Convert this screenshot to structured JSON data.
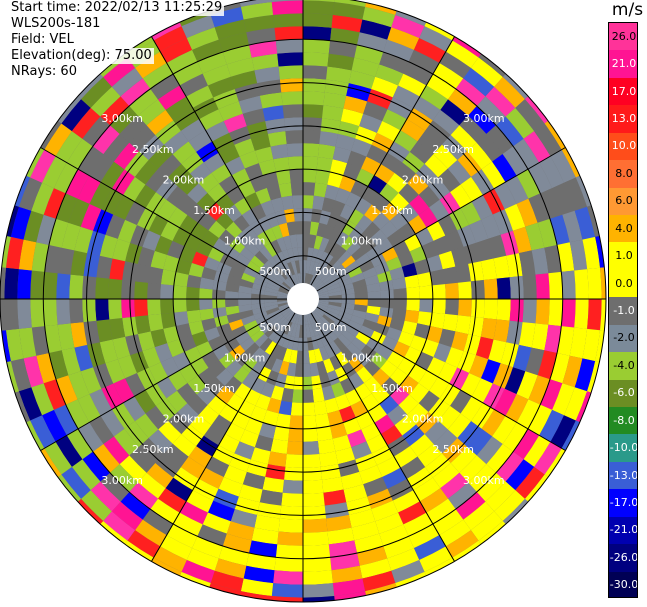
{
  "header": {
    "start_time": "Start time: 2022/02/13 11:25:29",
    "site": "WLS200s-181",
    "field": "Field: VEL",
    "elevation": "Elevation(deg): 75.00",
    "nrays": "NRays: 60"
  },
  "chart_data": {
    "type": "polar-ppi",
    "field": "VEL",
    "unit": "m/s",
    "n_rays": 60,
    "elevation_deg": 75.0,
    "max_range_km": 3.5,
    "range_rings_km": [
      0.5,
      1.0,
      1.5,
      2.0,
      2.5,
      3.0,
      3.5
    ],
    "ring_labels": [
      "500m",
      "1.00km",
      "1.50km",
      "2.00km",
      "2.50km",
      "3.00km"
    ],
    "spoke_step_deg": 30,
    "colorbar": {
      "ticks": [
        "26.0",
        "21.0",
        "17.0",
        "13.0",
        "10.0",
        "8.0",
        "6.0",
        "4.0",
        "1.0",
        "0.0",
        "-1.0",
        "-2.0",
        "-4.0",
        "-6.0",
        "-8.0",
        "-10.0",
        "-13.0",
        "-17.0",
        "-21.0",
        "-26.0",
        "-30.0"
      ],
      "colors": [
        "#ff3399",
        "#ff1493",
        "#ff0022",
        "#ff1a1a",
        "#ff4d1a",
        "#ff6f33",
        "#ff9933",
        "#ffb300",
        "#ffff00",
        "#ffff00",
        "#6e6e6e",
        "#7b8a99",
        "#9acd32",
        "#6b8e23",
        "#228b22",
        "#2a9a8a",
        "#3a5ed6",
        "#0000ff",
        "#0000b0",
        "#000080",
        "#000055"
      ]
    }
  }
}
